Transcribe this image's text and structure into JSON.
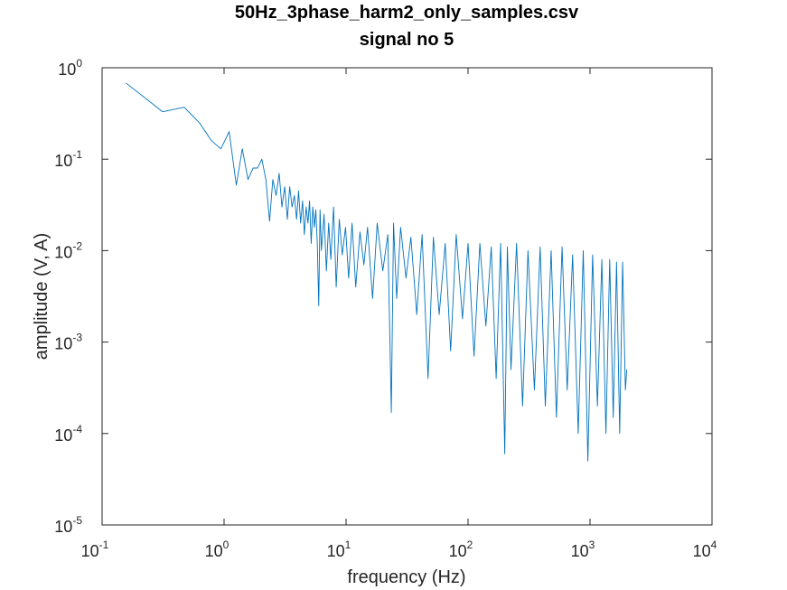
{
  "chart_data": {
    "type": "line",
    "title": "50Hz_3phase_harm2_only_samples.csv",
    "subtitle": "signal no 5",
    "xlabel": "frequency (Hz)",
    "ylabel": "amplitude (V, A)",
    "xscale": "log",
    "yscale": "log",
    "xlim": [
      0.1,
      10000
    ],
    "ylim": [
      1e-05,
      1
    ],
    "grid": false,
    "legend": "none",
    "x_ticks": [
      {
        "base": "10",
        "exp": "-1"
      },
      {
        "base": "10",
        "exp": "0"
      },
      {
        "base": "10",
        "exp": "1"
      },
      {
        "base": "10",
        "exp": "2"
      },
      {
        "base": "10",
        "exp": "3"
      },
      {
        "base": "10",
        "exp": "4"
      }
    ],
    "y_ticks": [
      {
        "base": "10",
        "exp": "0"
      },
      {
        "base": "10",
        "exp": "-1"
      },
      {
        "base": "10",
        "exp": "-2"
      },
      {
        "base": "10",
        "exp": "-3"
      },
      {
        "base": "10",
        "exp": "-4"
      },
      {
        "base": "10",
        "exp": "-5"
      }
    ],
    "line_color": "#0072bd",
    "series": [
      {
        "x": [
          0.157,
          0.314,
          0.471,
          0.628,
          0.785,
          0.942,
          1.1,
          1.26,
          1.41,
          1.57,
          1.73,
          1.88,
          2.04,
          2.2,
          2.36,
          2.51,
          2.67,
          2.83,
          2.98,
          3.14,
          3.3,
          3.45,
          3.61,
          3.77,
          3.93,
          4.08,
          4.24,
          4.4,
          4.55,
          4.71,
          4.87,
          5.02,
          5.18,
          5.34,
          5.5,
          5.65,
          5.81,
          5.97,
          6.12,
          6.28,
          6.6,
          6.9,
          7.2,
          7.5,
          7.9,
          8.3,
          8.8,
          9.3,
          9.9,
          10.5,
          11.2,
          12,
          13,
          14,
          15,
          16.5,
          18,
          20,
          22,
          23.5,
          24.5,
          26,
          28,
          31,
          34,
          38,
          42,
          47,
          52,
          58,
          65,
          72,
          80,
          90,
          100,
          112,
          125,
          140,
          155,
          170,
          185,
          200,
          210,
          225,
          250,
          280,
          310,
          350,
          390,
          430,
          480,
          530,
          590,
          650,
          720,
          800,
          880,
          960,
          1050,
          1150,
          1250,
          1350,
          1450,
          1550,
          1650,
          1750,
          1850,
          1950,
          2000
        ],
        "y": [
          0.68,
          0.33,
          0.37,
          0.25,
          0.16,
          0.13,
          0.2,
          0.052,
          0.13,
          0.06,
          0.08,
          0.08,
          0.1,
          0.06,
          0.021,
          0.06,
          0.04,
          0.07,
          0.03,
          0.05,
          0.022,
          0.05,
          0.03,
          0.04,
          0.022,
          0.045,
          0.02,
          0.035,
          0.015,
          0.03,
          0.02,
          0.035,
          0.012,
          0.03,
          0.018,
          0.028,
          0.012,
          0.0025,
          0.028,
          0.01,
          0.025,
          0.006,
          0.02,
          0.008,
          0.03,
          0.004,
          0.022,
          0.009,
          0.018,
          0.005,
          0.02,
          0.004,
          0.016,
          0.007,
          0.018,
          0.003,
          0.02,
          0.006,
          0.015,
          0.00017,
          0.02,
          0.003,
          0.018,
          0.005,
          0.014,
          0.002,
          0.015,
          0.0004,
          0.014,
          0.002,
          0.012,
          0.0008,
          0.015,
          0.0018,
          0.012,
          0.0007,
          0.012,
          0.0015,
          0.011,
          0.0004,
          0.012,
          6e-05,
          0.011,
          0.0005,
          0.012,
          0.0002,
          0.01,
          0.0003,
          0.011,
          0.0002,
          0.01,
          0.00015,
          0.011,
          0.0003,
          0.009,
          0.0001,
          0.01,
          5e-05,
          0.009,
          0.0002,
          0.008,
          0.0001,
          0.008,
          0.00015,
          0.0075,
          0.0001,
          0.0075,
          0.0003,
          0.0005
        ]
      }
    ]
  }
}
